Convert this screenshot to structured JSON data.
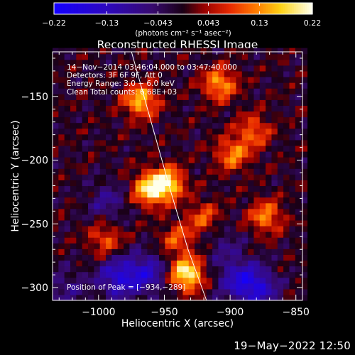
{
  "chart_data": {
    "type": "heatmap",
    "title": "Reconstructed RHESSI Image",
    "xlabel": "Heliocentric X (arcsec)",
    "ylabel": "Heliocentric Y (arcsec)",
    "xlim": [
      -1035,
      -845
    ],
    "ylim": [
      -310,
      -115
    ],
    "x_ticks": [
      -1000,
      -950,
      -900,
      -850
    ],
    "x_tick_labels": [
      "−1000",
      "−950",
      "−900",
      "−850"
    ],
    "y_ticks": [
      -150,
      -200,
      -250,
      -300
    ],
    "y_tick_labels": [
      "−150",
      "−200",
      "−250",
      "−300"
    ],
    "colorbar": {
      "range": [
        -0.22,
        0.22
      ],
      "ticks": [
        -0.22,
        -0.13,
        -0.043,
        0.043,
        0.13,
        0.22
      ],
      "tick_labels": [
        "−0.22",
        "−0.13",
        "−0.043",
        "0.043",
        "0.13",
        "0.22"
      ],
      "unit_label": "(photons cm⁻² s⁻¹ asec⁻²)"
    },
    "annotations": [
      "14−Nov−2014 03:46:04.000 to 03:47:40.000",
      "Detectors: 3F 6F 9F, Att 0",
      "Energy Range: 3.0 − 6.0 keV",
      "Clean     Total counts: 6.68E+03"
    ],
    "peak_label": "Position of Peak = [−934,−289]",
    "limb_curve": [
      [
        -975,
        -115
      ],
      [
        -960,
        -170
      ],
      [
        -945,
        -225
      ],
      [
        -932,
        -270
      ],
      [
        -918,
        -310
      ]
    ],
    "sources": [
      {
        "x": -948,
        "y": -218,
        "amp": 0.2
      },
      {
        "x": -962,
        "y": -223,
        "amp": 0.17
      },
      {
        "x": -933,
        "y": -289,
        "amp": 0.22
      },
      {
        "x": -968,
        "y": -153,
        "amp": 0.17
      },
      {
        "x": -908,
        "y": -140,
        "amp": 0.15
      },
      {
        "x": -898,
        "y": -195,
        "amp": 0.13
      },
      {
        "x": -882,
        "y": -177,
        "amp": 0.11
      },
      {
        "x": -873,
        "y": -244,
        "amp": 0.13
      },
      {
        "x": -995,
        "y": -262,
        "amp": 0.1
      },
      {
        "x": -940,
        "y": -262,
        "amp": 0.1
      },
      {
        "x": -920,
        "y": -245,
        "amp": 0.1
      }
    ],
    "sinks": [
      {
        "x": -985,
        "y": -292,
        "amp": -0.14
      },
      {
        "x": -963,
        "y": -288,
        "amp": -0.12
      },
      {
        "x": -895,
        "y": -292,
        "amp": -0.1
      },
      {
        "x": -880,
        "y": -300,
        "amp": -0.14
      },
      {
        "x": -993,
        "y": -232,
        "amp": -0.07
      },
      {
        "x": -1025,
        "y": -300,
        "amp": -0.06
      },
      {
        "x": -905,
        "y": -265,
        "amp": -0.05
      }
    ],
    "background": -0.005,
    "ripple_amplitude": 0.035
  },
  "footer": {
    "date": "19−May−2022 12:50"
  }
}
